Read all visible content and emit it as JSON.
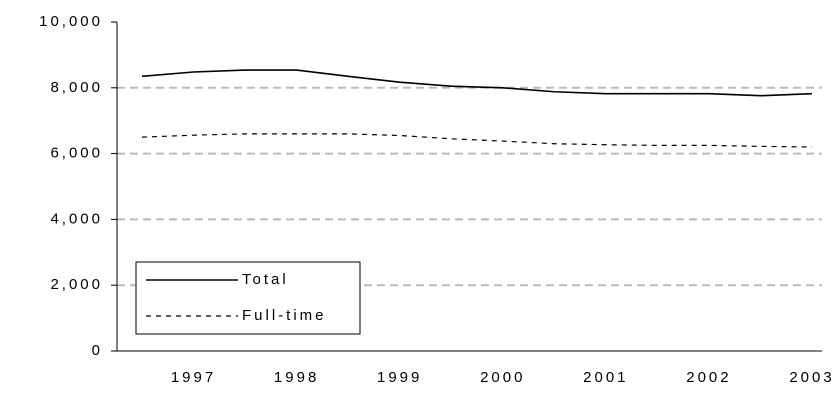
{
  "chart_data": {
    "type": "line",
    "categories": [
      null,
      "1997",
      null,
      "1998",
      null,
      "1999",
      null,
      "2000",
      null,
      "2001",
      null,
      "2002",
      null,
      "2003"
    ],
    "series": [
      {
        "name": "Total",
        "color": "#000000",
        "dash": "solid",
        "values": [
          8350,
          8480,
          8540,
          8540,
          8350,
          8170,
          8050,
          8000,
          7880,
          7820,
          7820,
          7820,
          7760,
          7820
        ]
      },
      {
        "name": "Full-time",
        "color": "#000000",
        "dash": "dashed",
        "values": [
          6500,
          6560,
          6600,
          6600,
          6600,
          6550,
          6450,
          6380,
          6300,
          6270,
          6250,
          6250,
          6220,
          6200
        ]
      }
    ],
    "ylim": [
      0,
      10000
    ],
    "yticks": [
      0,
      {
        "value": 2000,
        "label": "2,000"
      },
      {
        "value": 4000,
        "label": "4,000"
      },
      {
        "value": 6000,
        "label": "6,000"
      },
      {
        "value": 8000,
        "label": "8,000"
      },
      {
        "value": 10000,
        "label": "10,000"
      }
    ],
    "grid": true,
    "legend": "lower left"
  }
}
